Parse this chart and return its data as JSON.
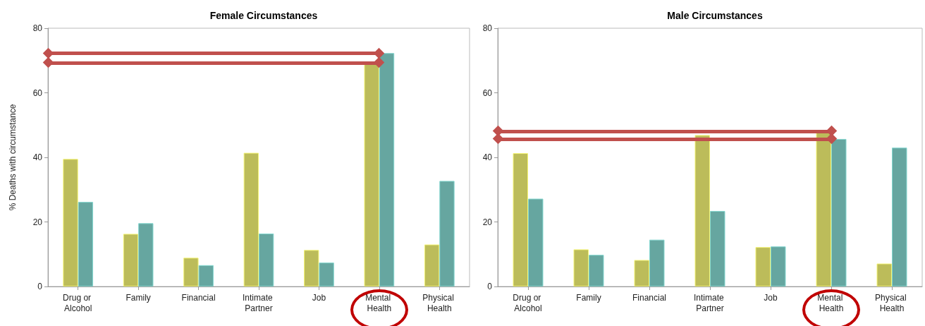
{
  "chart_data": [
    {
      "type": "bar",
      "title": "Female Circumstances",
      "ylabel": "% Deaths with circumstance",
      "categories": [
        "Drug or Alcohol",
        "Family",
        "Financial",
        "Intimate Partner",
        "Job",
        "Mental Health",
        "Physical Health"
      ],
      "series": [
        {
          "color": "#bcbc5a",
          "values": [
            39.5,
            16.3,
            8.9,
            41.4,
            11.3,
            69.3,
            13.0
          ]
        },
        {
          "color": "#66a6a0",
          "values": [
            26.2,
            19.6,
            6.6,
            16.4,
            7.4,
            72.3,
            32.7
          ]
        }
      ],
      "ylim": [
        0,
        80
      ],
      "yticks": [
        0,
        20,
        40,
        60,
        80
      ],
      "grid": false,
      "ref_lines": [
        {
          "axis": "y",
          "value": 72.3,
          "color": "#c0504d"
        },
        {
          "axis": "y",
          "value": 69.3,
          "color": "#c0504d"
        }
      ]
    },
    {
      "type": "bar",
      "title": "Male Circumstances",
      "categories": [
        "Drug or Alcohol",
        "Family",
        "Financial",
        "Intimate Partner",
        "Job",
        "Mental Health",
        "Physical Health"
      ],
      "series": [
        {
          "color": "#bcbc5a",
          "values": [
            41.3,
            11.5,
            8.2,
            46.9,
            12.2,
            48.1,
            7.1
          ]
        },
        {
          "color": "#66a6a0",
          "values": [
            27.2,
            9.8,
            14.5,
            23.4,
            12.4,
            45.7,
            43.0
          ]
        }
      ],
      "ylim": [
        0,
        80
      ],
      "yticks": [
        0,
        20,
        40,
        60,
        80
      ],
      "grid": false,
      "ref_lines": [
        {
          "axis": "y",
          "value": 48.1,
          "color": "#c0504d"
        },
        {
          "axis": "y",
          "value": 45.7,
          "color": "#c0504d"
        }
      ]
    }
  ]
}
